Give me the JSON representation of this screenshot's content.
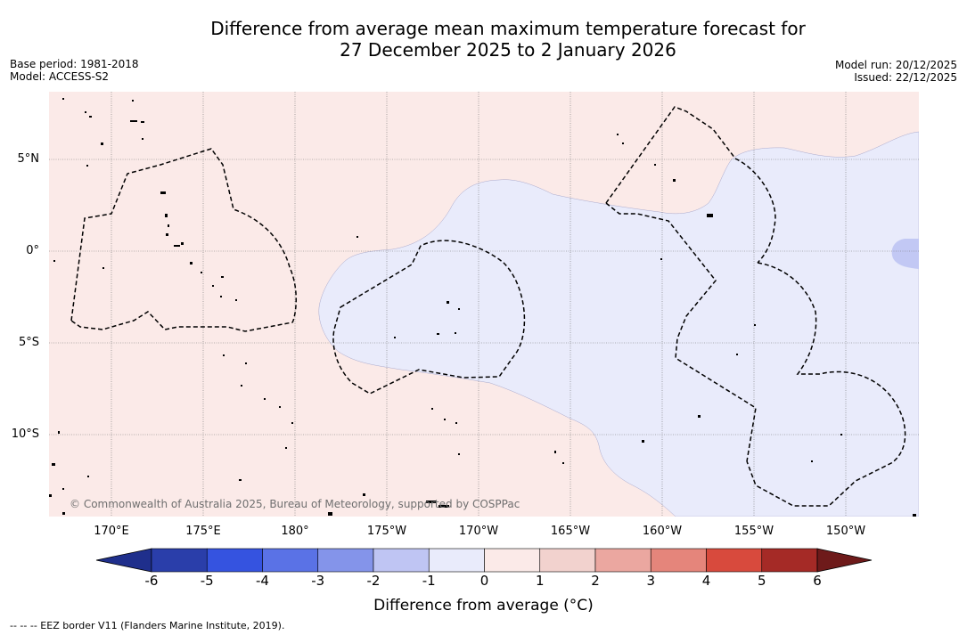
{
  "title": {
    "line1": "Difference from average mean maximum temperature forecast for",
    "line2": "27 December 2025 to 2 January 2026"
  },
  "meta_left": {
    "base_period": "Base period: 1981-2018",
    "model": "Model: ACCESS-S2"
  },
  "meta_right": {
    "model_run": "Model run: 20/12/2025",
    "issued": "Issued: 22/12/2025"
  },
  "map": {
    "copyright": "© Commonwealth of Australia 2025, Bureau of Meteorology, supported by COSPPac",
    "lat_labels": [
      "5°N",
      "0°",
      "5°S",
      "10°S"
    ],
    "lon_labels": [
      "170°E",
      "175°E",
      "180°",
      "175°W",
      "170°W",
      "165°W",
      "160°W",
      "155°W",
      "150°W"
    ],
    "lon_range": [
      "167°E",
      "146.5°W"
    ],
    "lat_range": [
      "14.3°S",
      "8.5°N"
    ],
    "regions": [
      {
        "anomaly_range": "0 to 1",
        "color": "#fbeae8"
      },
      {
        "anomaly_range": "-1 to 0",
        "color": "#e9ebfb"
      },
      {
        "anomaly_range": "-2 to -1",
        "color": "#c2c8f4"
      }
    ]
  },
  "colorbar": {
    "ticks": [
      "-6",
      "-5",
      "-4",
      "-3",
      "-2",
      "-1",
      "0",
      "1",
      "2",
      "3",
      "4",
      "5",
      "6"
    ],
    "colors": [
      "#1f2f8c",
      "#2a3eaa",
      "#3553e0",
      "#5a72e6",
      "#8494ea",
      "#bfc5f3",
      "#e9ebfb",
      "#fbeae8",
      "#f2d2ce",
      "#eba7a0",
      "#e5857b",
      "#d84a3d",
      "#a52a26",
      "#6e1a1a"
    ],
    "title": "Difference from average (°C)"
  },
  "footer": "-- -- -- EEZ border V11 (Flanders Marine Institute, 2019)."
}
